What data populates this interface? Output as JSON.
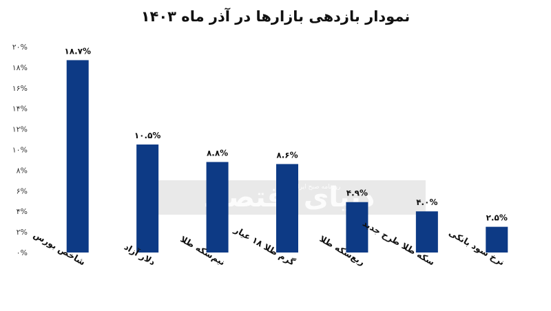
{
  "chart_data": {
    "type": "bar",
    "title": "نمودار بازدهی بازارها در آذر ماه ۱۴۰۳",
    "categories": [
      "شاخص بورس",
      "دلار آزاد",
      "نیم‌سکه طلا",
      "گرم طلا ۱۸ عیار",
      "ربع‌سکه طلا",
      "سکه طلا طرح جدید",
      "نرخ سود بانکی"
    ],
    "values": [
      18.7,
      10.5,
      8.8,
      8.6,
      4.9,
      4.0,
      2.5
    ],
    "data_labels": [
      "۱۸.۷%",
      "۱۰.۵%",
      "۸.۸%",
      "۸.۶%",
      "۴.۹%",
      "۴.۰%",
      "۲.۵%"
    ],
    "y_ticks": [
      0,
      2,
      4,
      6,
      8,
      10,
      12,
      14,
      16,
      18,
      20
    ],
    "y_tick_labels": [
      "۰%",
      "۲%",
      "۴%",
      "۶%",
      "۸%",
      "۱۰%",
      "۱۲%",
      "۱۴%",
      "۱۶%",
      "۱۸%",
      "۲۰%"
    ],
    "ylim": [
      0,
      20
    ],
    "bar_color": "#0d3a85",
    "grid": false
  },
  "watermark": {
    "brand": "دنیای اقتصاد",
    "tagline": "روزنامه صبح ایران"
  }
}
